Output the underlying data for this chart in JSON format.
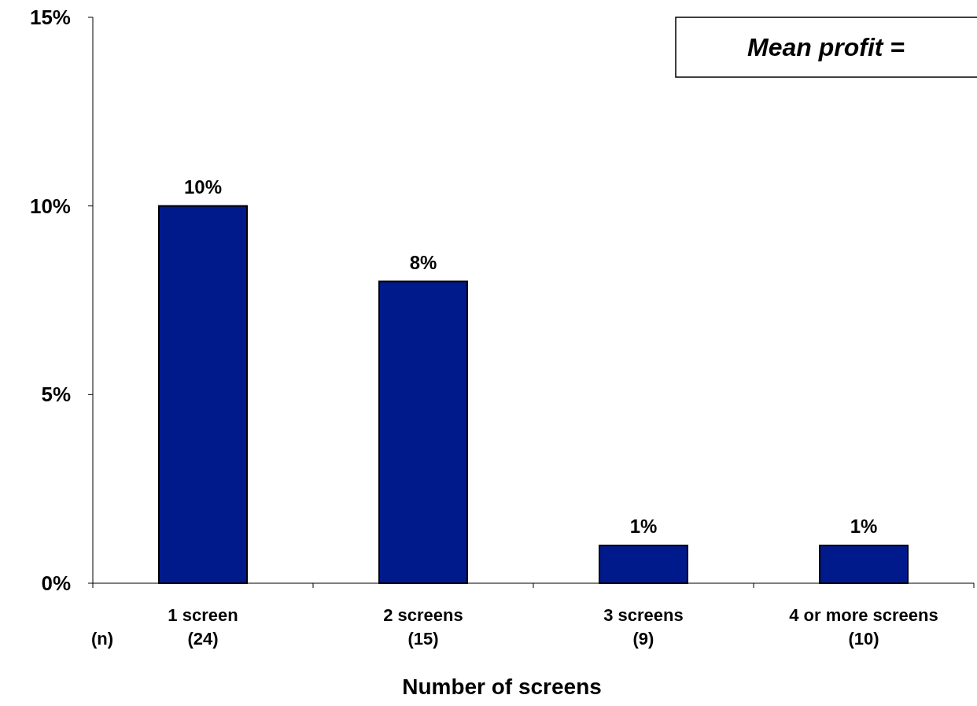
{
  "chart_data": {
    "type": "bar",
    "xlabel": "Number of screens",
    "categories": [
      "1 screen\n(24)",
      "2 screens\n(15)",
      "3 screens\n(9)",
      "4 or more screens\n(10)"
    ],
    "values": [
      10,
      8,
      1,
      1
    ],
    "value_labels": [
      "10%",
      "8%",
      "1%",
      "1%"
    ],
    "color": "#001a8c",
    "ylim": [
      0,
      15
    ],
    "yticks": [
      {
        "value": 0,
        "label": "0%"
      },
      {
        "value": 5,
        "label": "5%"
      },
      {
        "value": 10,
        "label": "10%"
      },
      {
        "value": 15,
        "label": "15%"
      }
    ],
    "grid": false,
    "annotations": [
      "Mean profit =",
      "(n)"
    ]
  }
}
